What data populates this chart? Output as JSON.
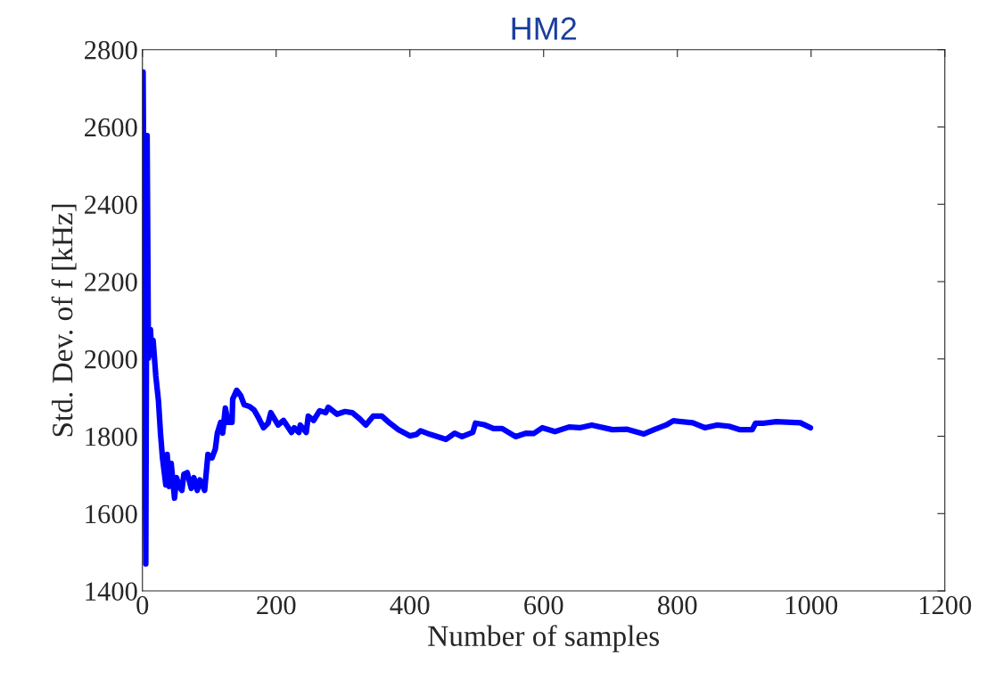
{
  "chart_data": {
    "type": "line",
    "title": "HM2",
    "xlabel": "Number of samples",
    "ylabel": "Std. Dev. of f [kHz]",
    "xlim": [
      0,
      1200
    ],
    "xticks": [
      0,
      200,
      400,
      600,
      800,
      1000,
      1200
    ],
    "ylim": [
      1400,
      2800
    ],
    "yticks": [
      1400,
      1600,
      1800,
      2000,
      2200,
      2400,
      2600,
      2800
    ],
    "grid": false,
    "marker": "none",
    "line_style": "solid",
    "series": [
      {
        "color": "#0000ff",
        "x": [
          1,
          5,
          7,
          9,
          12,
          14,
          16,
          20,
          24,
          27,
          30,
          35,
          37,
          40,
          43,
          48,
          51,
          55,
          59,
          62,
          67,
          73,
          77,
          82,
          86,
          93,
          98,
          104,
          109,
          112,
          117,
          120,
          124,
          128,
          134,
          135,
          141,
          147,
          152,
          160,
          167,
          173,
          181,
          188,
          192,
          203,
          211,
          223,
          227,
          234,
          236,
          245,
          248,
          256,
          265,
          274,
          278,
          291,
          303,
          314,
          325,
          334,
          345,
          358,
          370,
          383,
          400,
          410,
          416,
          430,
          454,
          467,
          478,
          494,
          498,
          511,
          525,
          538,
          558,
          574,
          585,
          598,
          617,
          638,
          654,
          672,
          703,
          725,
          750,
          765,
          783,
          794,
          823,
          841,
          859,
          877,
          894,
          912,
          917,
          930,
          948,
          984,
          999
        ],
        "values": [
          2742,
          1470,
          2578,
          2002,
          2076,
          2011,
          2048,
          1956,
          1891,
          1808,
          1744,
          1674,
          1753,
          1670,
          1730,
          1640,
          1693,
          1670,
          1660,
          1702,
          1706,
          1665,
          1693,
          1660,
          1687,
          1660,
          1753,
          1744,
          1767,
          1808,
          1836,
          1808,
          1873,
          1836,
          1836,
          1896,
          1919,
          1905,
          1882,
          1877,
          1868,
          1850,
          1822,
          1834,
          1861,
          1829,
          1841,
          1810,
          1822,
          1810,
          1829,
          1810,
          1852,
          1841,
          1866,
          1861,
          1875,
          1857,
          1864,
          1861,
          1845,
          1829,
          1852,
          1852,
          1834,
          1817,
          1801,
          1805,
          1814,
          1805,
          1792,
          1808,
          1799,
          1810,
          1834,
          1830,
          1820,
          1820,
          1799,
          1808,
          1807,
          1822,
          1812,
          1824,
          1822,
          1829,
          1817,
          1818,
          1806,
          1817,
          1829,
          1840,
          1835,
          1822,
          1829,
          1826,
          1817,
          1817,
          1834,
          1834,
          1838,
          1835,
          1822
        ]
      }
    ]
  }
}
